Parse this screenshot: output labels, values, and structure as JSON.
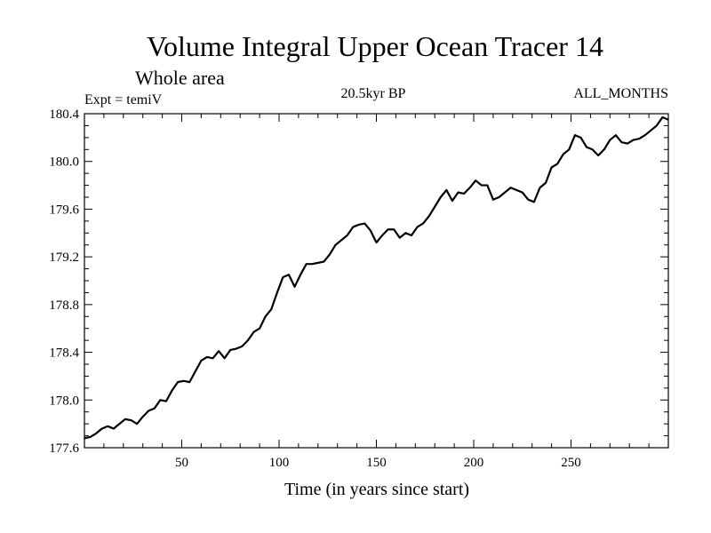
{
  "chart_data": {
    "type": "line",
    "title": "Volume Integral Upper Ocean Tracer 14",
    "subtitle": "Whole area",
    "left_label": "Expt = temiV",
    "center_label": "20.5kyr BP",
    "right_label": "ALL_MONTHS",
    "xlabel": "Time (in years since start)",
    "ylabel": "",
    "xlim": [
      0,
      300
    ],
    "ylim": [
      177.6,
      180.4
    ],
    "x_ticks": [
      50,
      100,
      150,
      200,
      250
    ],
    "x_tick_labels": [
      "50",
      "100",
      "150",
      "200",
      "250"
    ],
    "y_ticks": [
      177.6,
      178.0,
      178.4,
      178.8,
      179.2,
      179.6,
      180.0,
      180.4
    ],
    "y_tick_labels": [
      "177.6",
      "178.0",
      "178.4",
      "178.8",
      "179.2",
      "179.6",
      "180.0",
      "180.4"
    ],
    "grid": false,
    "series": [
      {
        "name": "Volume Integral Upper Ocean Tracer 14",
        "color": "#000000",
        "x": [
          0,
          3,
          6,
          9,
          12,
          15,
          18,
          21,
          24,
          27,
          30,
          33,
          36,
          39,
          42,
          45,
          48,
          51,
          54,
          57,
          60,
          63,
          66,
          69,
          72,
          75,
          78,
          81,
          84,
          87,
          90,
          93,
          96,
          99,
          102,
          105,
          108,
          111,
          114,
          117,
          120,
          123,
          126,
          129,
          132,
          135,
          138,
          141,
          144,
          147,
          150,
          153,
          156,
          159,
          162,
          165,
          168,
          171,
          174,
          177,
          180,
          183,
          186,
          189,
          192,
          195,
          198,
          201,
          204,
          207,
          210,
          213,
          216,
          219,
          222,
          225,
          228,
          231,
          234,
          237,
          240,
          243,
          246,
          249,
          252,
          255,
          258,
          261,
          264,
          267,
          270,
          273,
          276,
          279,
          282,
          285,
          288,
          291,
          294,
          297,
          300
        ],
        "values": [
          177.68,
          177.69,
          177.72,
          177.76,
          177.78,
          177.76,
          177.8,
          177.84,
          177.83,
          177.8,
          177.86,
          177.91,
          177.93,
          178.0,
          177.99,
          178.08,
          178.15,
          178.16,
          178.15,
          178.24,
          178.33,
          178.36,
          178.35,
          178.41,
          178.35,
          178.42,
          178.43,
          178.45,
          178.5,
          178.57,
          178.6,
          178.7,
          178.76,
          178.9,
          179.03,
          179.05,
          178.95,
          179.05,
          179.14,
          179.14,
          179.15,
          179.16,
          179.22,
          179.3,
          179.34,
          179.38,
          179.45,
          179.47,
          179.48,
          179.42,
          179.32,
          179.38,
          179.43,
          179.43,
          179.36,
          179.4,
          179.38,
          179.45,
          179.48,
          179.54,
          179.62,
          179.7,
          179.76,
          179.67,
          179.74,
          179.73,
          179.78,
          179.84,
          179.8,
          179.8,
          179.68,
          179.7,
          179.74,
          179.78,
          179.76,
          179.74,
          179.68,
          179.66,
          179.78,
          179.82,
          179.95,
          179.98,
          180.06,
          180.1,
          180.22,
          180.2,
          180.12,
          180.1,
          180.05,
          180.1,
          180.18,
          180.22,
          180.16,
          180.15,
          180.18,
          180.19,
          180.22,
          180.26,
          180.3,
          180.37,
          180.35
        ]
      }
    ]
  }
}
